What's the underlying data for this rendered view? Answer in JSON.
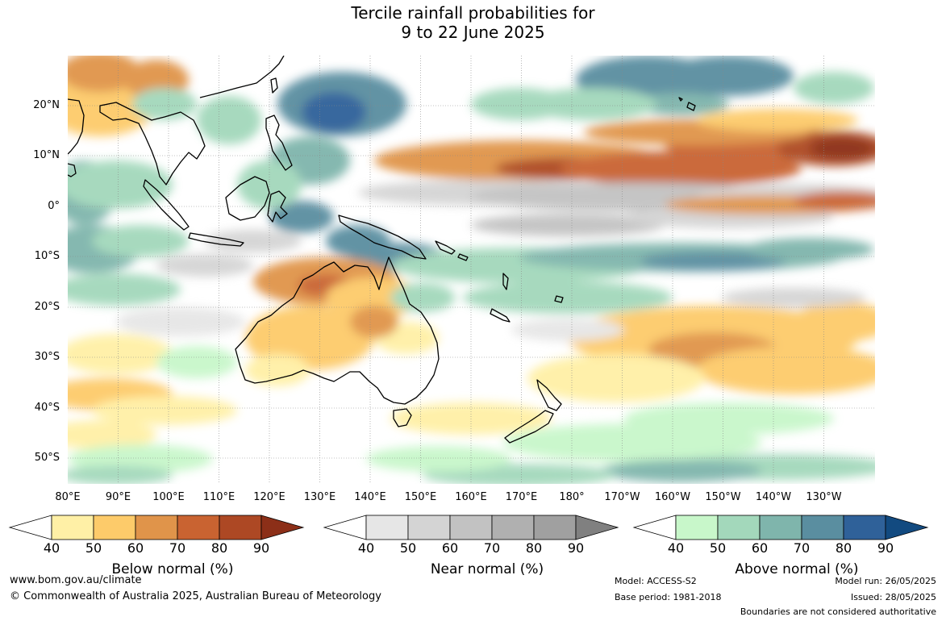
{
  "title": {
    "line1": "Tercile rainfall probabilities for",
    "line2": "9 to 22 June 2025"
  },
  "map": {
    "lat_labels": [
      "20°N",
      "10°N",
      "0°",
      "10°S",
      "20°S",
      "30°S",
      "40°S",
      "50°S"
    ],
    "lon_labels": [
      "80°E",
      "90°E",
      "100°E",
      "110°E",
      "120°E",
      "130°E",
      "140°E",
      "150°E",
      "160°E",
      "170°E",
      "180°",
      "170°W",
      "160°W",
      "150°W",
      "140°W",
      "130°W"
    ],
    "colors": {
      "below": [
        "#fff0a6",
        "#fdcb6a",
        "#e0944a",
        "#c96331",
        "#ad4824",
        "#8c2f18"
      ],
      "near": [
        "#e6e6e6",
        "#d4d4d4",
        "#c2c2c2",
        "#b0b0b0",
        "#a0a0a0",
        "#808080"
      ],
      "above": [
        "#c8f7ca",
        "#a3d8bb",
        "#7fb5ac",
        "#5a8ea0",
        "#2f6199",
        "#124a80"
      ]
    }
  },
  "legends": [
    {
      "title": "Below normal (%)",
      "ticks": [
        "40",
        "50",
        "60",
        "70",
        "80",
        "90"
      ],
      "palette": "below"
    },
    {
      "title": "Near normal (%)",
      "ticks": [
        "40",
        "50",
        "60",
        "70",
        "80",
        "90"
      ],
      "palette": "near"
    },
    {
      "title": "Above normal (%)",
      "ticks": [
        "40",
        "50",
        "60",
        "70",
        "80",
        "90"
      ],
      "palette": "above"
    }
  ],
  "footer": {
    "website": "www.bom.gov.au/climate",
    "copyright": "© Commonwealth of Australia 2025, Australian Bureau of Meteorology",
    "model": "Model: ACCESS-S2",
    "base_period": "Base period: 1981-2018",
    "model_run": "Model run: 26/05/2025",
    "issued": "Issued: 28/05/2025",
    "disclaimer": "Boundaries are not considered authoritative"
  }
}
